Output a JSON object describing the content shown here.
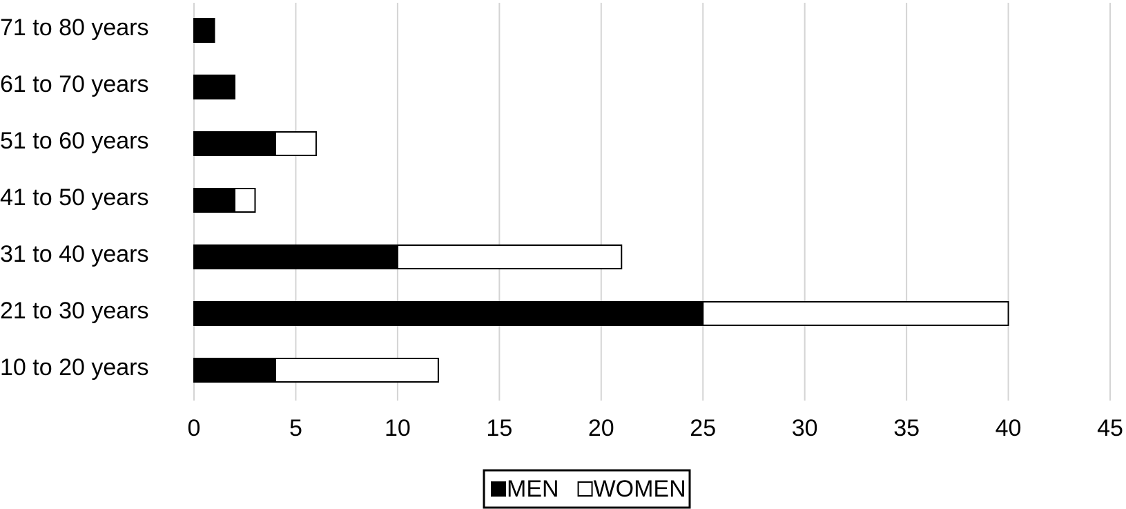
{
  "chart_data": {
    "type": "stacked-bar-horizontal",
    "categories": [
      "10 to 20 years",
      "21 to 30 years",
      "31 to 40 years",
      "41 to 50 years",
      "51 to 60 years",
      "61 to 70 years",
      "71 to 80 years"
    ],
    "series": [
      {
        "name": "MEN",
        "color": "#000000",
        "values": [
          4,
          25,
          10,
          2,
          4,
          2,
          1
        ]
      },
      {
        "name": "WOMEN",
        "color": "#ffffff",
        "values": [
          8,
          15,
          11,
          1,
          2,
          0,
          0
        ]
      }
    ],
    "xlim": [
      0,
      45
    ],
    "xticks": [
      0,
      5,
      10,
      15,
      20,
      25,
      30,
      35,
      40,
      45
    ],
    "grid": true,
    "legend": "bottom"
  }
}
